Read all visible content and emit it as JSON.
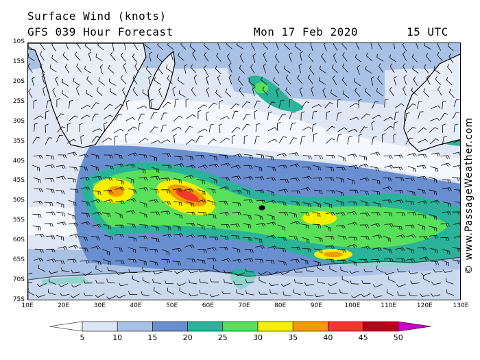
{
  "header": {
    "title": "Surface Wind (knots)",
    "model": "GFS 039 Hour Forecast",
    "date": "Mon 17 Feb 2020",
    "time": "15 UTC"
  },
  "map": {
    "latitude_labels": [
      "10S",
      "15S",
      "20S",
      "25S",
      "30S",
      "35S",
      "40S",
      "45S",
      "50S",
      "55S",
      "60S",
      "65S",
      "70S",
      "75S"
    ],
    "longitude_labels": [
      "10E",
      "20E",
      "30E",
      "40E",
      "50E",
      "60E",
      "70E",
      "80E",
      "90E",
      "100E",
      "110E",
      "120E",
      "130E"
    ],
    "land_color": "#e8eef8",
    "ocean_base_color": "#dfe7f4",
    "regions": [
      "Southern Africa",
      "Madagascar",
      "Western Australia",
      "Antarctica",
      "Kerguelen Islands"
    ]
  },
  "legend": {
    "labels": [
      "5",
      "10",
      "15",
      "20",
      "25",
      "30",
      "35",
      "40",
      "45",
      "50"
    ],
    "colors": [
      "#ffffff",
      "#dde6f4",
      "#a9c1e4",
      "#6a8fd0",
      "#2bb39a",
      "#58e05a",
      "#f6f000",
      "#f59a00",
      "#ee3a2a",
      "#b8001a",
      "#c800c8"
    ]
  },
  "copyright": "© www.PassageWeather.com"
}
